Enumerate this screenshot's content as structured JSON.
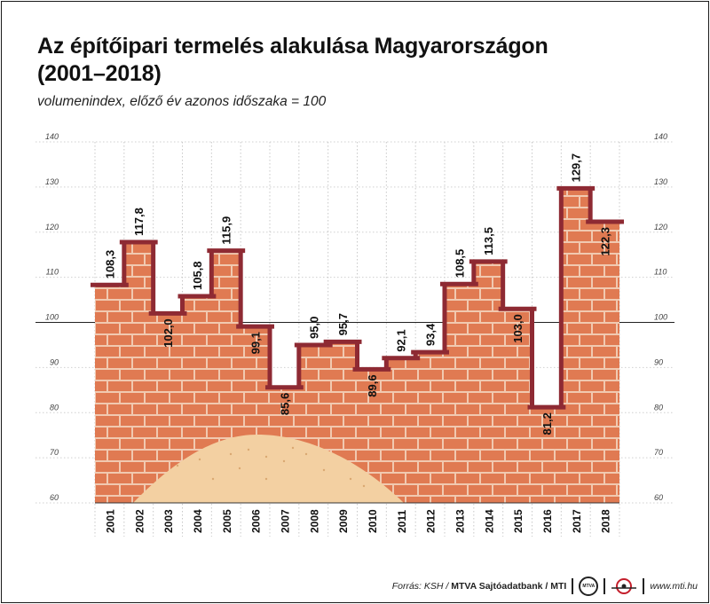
{
  "title_line1": "Az építőipari termelés alakulása Magyarországon",
  "title_line2": "(2001–2018)",
  "subtitle": "volumenindex, előző év azonos időszaka = 100",
  "chart_data": {
    "type": "line",
    "step": true,
    "x": [
      "2001",
      "2002",
      "2003",
      "2004",
      "2005",
      "2006",
      "2007",
      "2008",
      "2009",
      "2010",
      "2011",
      "2012",
      "2013",
      "2014",
      "2015",
      "2016",
      "2017",
      "2018"
    ],
    "values": [
      108.3,
      117.8,
      102.0,
      105.8,
      115.9,
      99.1,
      85.6,
      95.0,
      95.7,
      89.6,
      92.1,
      93.4,
      108.5,
      113.5,
      103.0,
      81.2,
      129.7,
      122.3
    ],
    "value_labels": [
      "108,3",
      "117,8",
      "102,0",
      "105,8",
      "115,9",
      "99,1",
      "85,6",
      "95,0",
      "95,7",
      "89,6",
      "92,1",
      "93,4",
      "108,5",
      "113,5",
      "103,0",
      "81,2",
      "129,7",
      "122,3"
    ],
    "yticks": [
      "60",
      "70",
      "80",
      "90",
      "100",
      "110",
      "120",
      "130",
      "140"
    ],
    "ylim": [
      60,
      140
    ],
    "reference_line": 100,
    "grid": true,
    "colors": {
      "line": "#8e2a33",
      "brick": "#e07a52",
      "mortar": "#f1c9b0",
      "sand": "#f3d0a2"
    }
  },
  "footer": {
    "source_prefix": "Forrás: KSH / ",
    "source_bold": "MTVA Sajtóadatbank / MTI",
    "logo1_text": "MTVA",
    "url": "www.mti.hu"
  }
}
